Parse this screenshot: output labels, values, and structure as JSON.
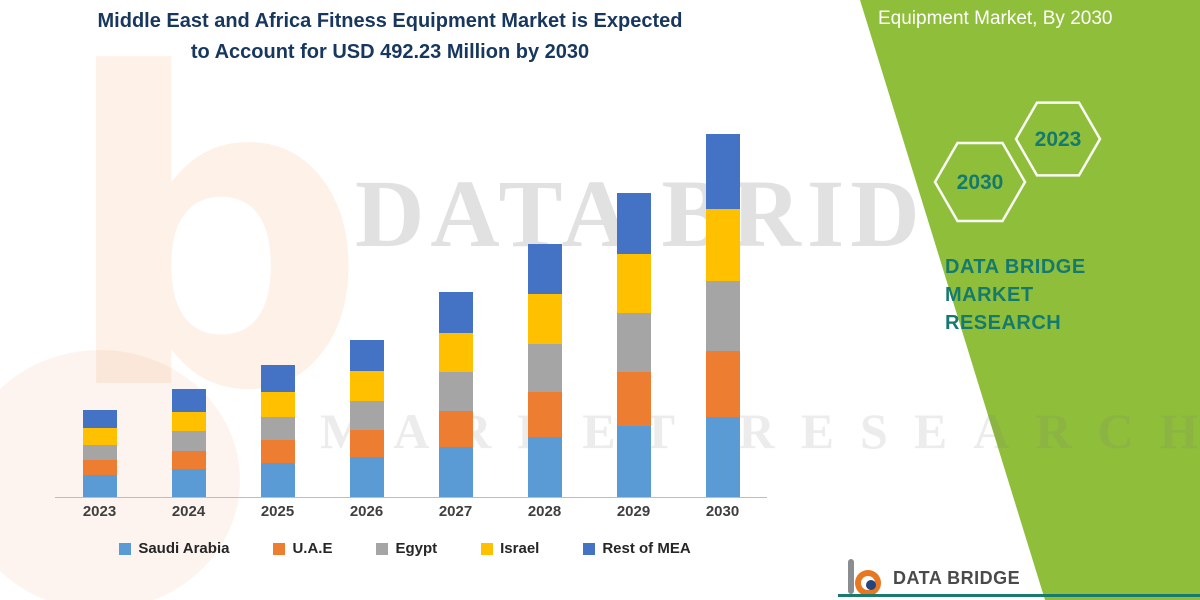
{
  "header": {
    "title_lines": [
      "Middle East and Africa Fitness Equipment Market is Expected",
      "to Account for USD 492.23 Million by 2030"
    ]
  },
  "panel": {
    "title": "Equipment Market, By 2030",
    "hexagon_front": "2030",
    "hexagon_back": "2023",
    "brand_lines": [
      "DATA BRIDGE MARKET",
      "RESEARCH"
    ]
  },
  "watermark": {
    "line1": "DATA BRIDGE",
    "line2": "MARKET RESEARCH",
    "letter": "b"
  },
  "footer": {
    "brand": "DATA BRIDGE"
  },
  "colors": {
    "panel_green": "#8FBE3B",
    "title_navy": "#17375E",
    "brand_teal": "#157A6E",
    "axis_gray": "#BDBDBD"
  },
  "chart_data": {
    "type": "bar",
    "stacked": true,
    "units": "USD Million",
    "categories": [
      "2023",
      "2024",
      "2025",
      "2026",
      "2027",
      "2028",
      "2029",
      "2030"
    ],
    "series": [
      {
        "name": "Saudi Arabia",
        "color": "#5B9BD5",
        "values": [
          30,
          38,
          46,
          54,
          68,
          82,
          96,
          108
        ]
      },
      {
        "name": "U.A.E",
        "color": "#ED7D31",
        "values": [
          20,
          25,
          31,
          37,
          49,
          61,
          74,
          90
        ]
      },
      {
        "name": "Egypt",
        "color": "#A5A5A5",
        "values": [
          21,
          26,
          32,
          39,
          52,
          65,
          79,
          95
        ]
      },
      {
        "name": "Israel",
        "color": "#FFC000",
        "values": [
          22,
          27,
          34,
          41,
          54,
          67,
          81,
          98
        ]
      },
      {
        "name": "Rest of MEA",
        "color": "#4472C4",
        "values": [
          25,
          30,
          36,
          42,
          55,
          68,
          82,
          101.23
        ]
      }
    ],
    "totals": [
      118,
      146,
      179,
      213,
      278,
      343,
      412,
      492.23
    ],
    "highlight_total_2030": 492.23,
    "legend_position": "bottom",
    "grid": false,
    "axis_visible": {
      "x": true,
      "y": false
    }
  }
}
